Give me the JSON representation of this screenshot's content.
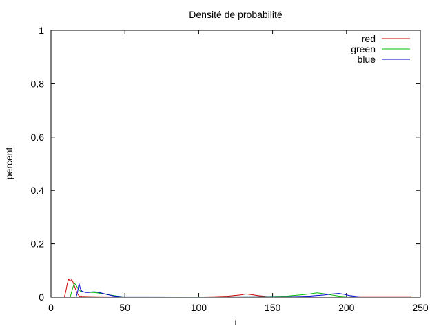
{
  "chart_data": {
    "type": "line",
    "title": "Densité de probabilité",
    "xlabel": "i",
    "ylabel": "percent",
    "xlim": [
      0,
      250
    ],
    "ylim": [
      0,
      1
    ],
    "xticks": [
      0,
      50,
      100,
      150,
      200,
      250
    ],
    "yticks": [
      0,
      0.2,
      0.4,
      0.6,
      0.8,
      1
    ],
    "xtick_labels": [
      "0",
      "50",
      "100",
      "150",
      "200",
      "250"
    ],
    "ytick_labels": [
      "0",
      "0.2",
      "0.4",
      "0.6",
      "0.8",
      "1"
    ],
    "grid": false,
    "legend": "top-right",
    "series": [
      {
        "name": "red",
        "color": "#cc0000",
        "points": [
          [
            0,
            0
          ],
          [
            9,
            0
          ],
          [
            10,
            0.02
          ],
          [
            11,
            0.05
          ],
          [
            12,
            0.068
          ],
          [
            13,
            0.06
          ],
          [
            14,
            0.066
          ],
          [
            15,
            0.055
          ],
          [
            16,
            0.04
          ],
          [
            17,
            0.025
          ],
          [
            18,
            0.012
          ],
          [
            19,
            0.005
          ],
          [
            20,
            0.003
          ],
          [
            30,
            0.002
          ],
          [
            50,
            0.001
          ],
          [
            100,
            0.001
          ],
          [
            110,
            0.002
          ],
          [
            120,
            0.004
          ],
          [
            128,
            0.008
          ],
          [
            132,
            0.012
          ],
          [
            135,
            0.01
          ],
          [
            140,
            0.006
          ],
          [
            145,
            0.003
          ],
          [
            150,
            0.001
          ],
          [
            200,
            0.001
          ],
          [
            210,
            0.002
          ],
          [
            220,
            0.002
          ],
          [
            244,
            0.002
          ]
        ]
      },
      {
        "name": "green",
        "color": "#00bb00",
        "points": [
          [
            0,
            0
          ],
          [
            13,
            0
          ],
          [
            14,
            0.02
          ],
          [
            15,
            0.04
          ],
          [
            16,
            0.052
          ],
          [
            17,
            0.045
          ],
          [
            18,
            0.035
          ],
          [
            19,
            0.028
          ],
          [
            20,
            0.022
          ],
          [
            22,
            0.02
          ],
          [
            25,
            0.018
          ],
          [
            30,
            0.017
          ],
          [
            35,
            0.013
          ],
          [
            40,
            0.008
          ],
          [
            45,
            0.004
          ],
          [
            50,
            0.001
          ],
          [
            100,
            0.001
          ],
          [
            140,
            0.002
          ],
          [
            160,
            0.004
          ],
          [
            170,
            0.009
          ],
          [
            175,
            0.012
          ],
          [
            180,
            0.016
          ],
          [
            182,
            0.015
          ],
          [
            186,
            0.012
          ],
          [
            190,
            0.008
          ],
          [
            195,
            0.004
          ],
          [
            200,
            0.002
          ],
          [
            210,
            0.001
          ],
          [
            244,
            0.001
          ]
        ]
      },
      {
        "name": "blue",
        "color": "#0000cc",
        "points": [
          [
            0,
            0
          ],
          [
            17,
            0
          ],
          [
            18,
            0.02
          ],
          [
            19,
            0.052
          ],
          [
            20,
            0.03
          ],
          [
            21,
            0.022
          ],
          [
            23,
            0.018
          ],
          [
            25,
            0.017
          ],
          [
            28,
            0.02
          ],
          [
            30,
            0.02
          ],
          [
            33,
            0.017
          ],
          [
            38,
            0.01
          ],
          [
            42,
            0.005
          ],
          [
            48,
            0.002
          ],
          [
            100,
            0.001
          ],
          [
            160,
            0.002
          ],
          [
            175,
            0.004
          ],
          [
            185,
            0.008
          ],
          [
            190,
            0.012
          ],
          [
            195,
            0.014
          ],
          [
            198,
            0.011
          ],
          [
            202,
            0.006
          ],
          [
            206,
            0.003
          ],
          [
            210,
            0.001
          ],
          [
            244,
            0.001
          ]
        ]
      }
    ]
  }
}
